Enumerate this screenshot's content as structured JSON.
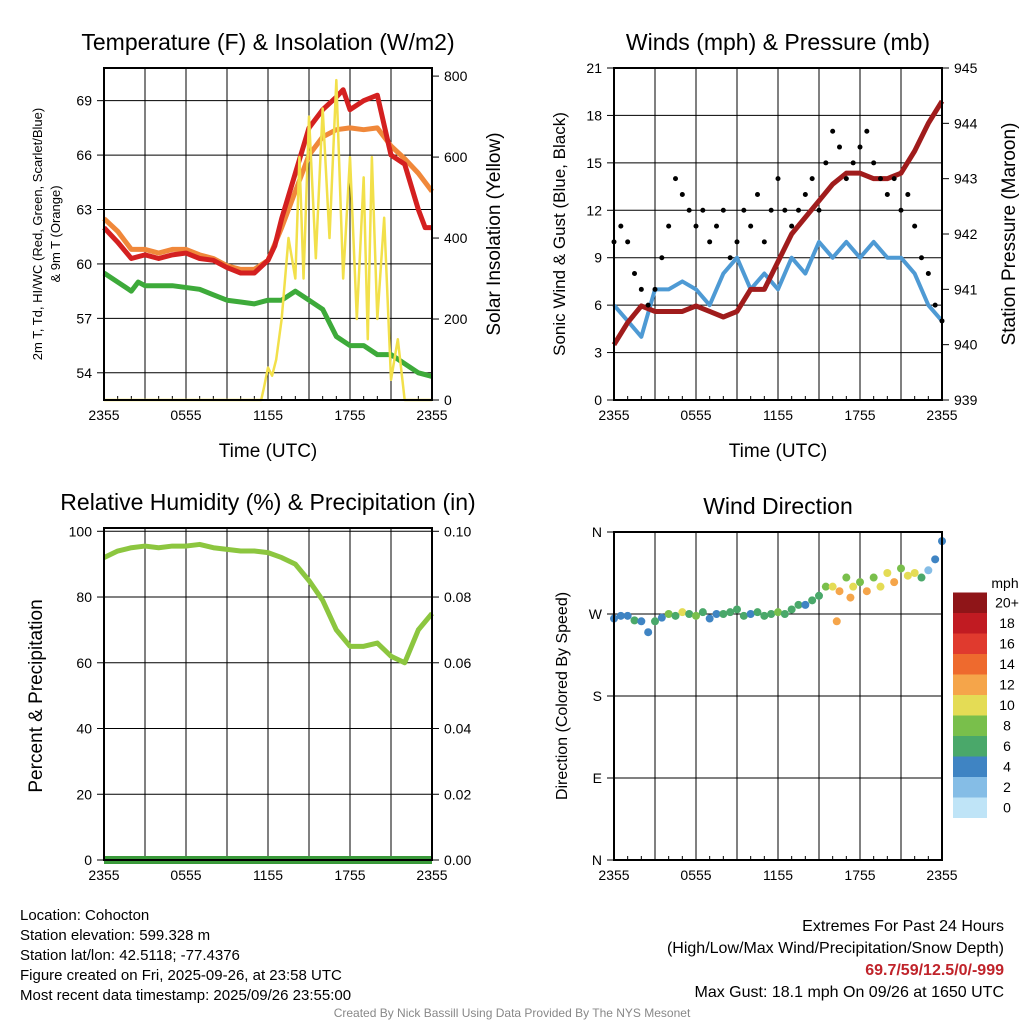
{
  "chart_data": [
    {
      "type": "line",
      "title": "Temperature (F) & Insolation (W/m2)",
      "xlabel": "Time (UTC)",
      "ylabel": "2m T, Td, HI/WC (Red, Green, Scarlet/Blue) & 9m T (Orange)",
      "ylabel2": "Solar Insolation (Yellow)",
      "xticks": [
        "2355",
        "0555",
        "1155",
        "1755",
        "2355"
      ],
      "yticks": [
        "54",
        "57",
        "60",
        "63",
        "66",
        "69"
      ],
      "yticks2": [
        "0",
        "200",
        "400",
        "600",
        "800"
      ],
      "ylim": [
        52.5,
        70.8
      ],
      "ylim2": [
        0,
        820
      ],
      "series": [
        {
          "name": "9m T",
          "color": "#f0883a",
          "axis": "left",
          "points": [
            [
              0,
              62.5
            ],
            [
              1,
              61.8
            ],
            [
              2,
              60.8
            ],
            [
              3,
              60.8
            ],
            [
              4,
              60.6
            ],
            [
              5,
              60.8
            ],
            [
              6,
              60.8
            ],
            [
              7,
              60.5
            ],
            [
              8,
              60.3
            ],
            [
              9,
              59.9
            ],
            [
              10,
              59.7
            ],
            [
              11,
              59.7
            ],
            [
              12,
              60.2
            ],
            [
              13,
              62
            ],
            [
              14,
              64
            ],
            [
              15,
              66
            ],
            [
              16,
              67
            ],
            [
              17,
              67.4
            ],
            [
              18,
              67.5
            ],
            [
              19,
              67.4
            ],
            [
              20,
              67.5
            ],
            [
              21,
              66.5
            ],
            [
              22,
              65.8
            ],
            [
              23,
              65
            ],
            [
              24,
              64
            ]
          ]
        },
        {
          "name": "2m T",
          "color": "#d42020",
          "axis": "left",
          "points": [
            [
              0,
              62
            ],
            [
              1,
              61.2
            ],
            [
              2,
              60.3
            ],
            [
              3,
              60.5
            ],
            [
              4,
              60.3
            ],
            [
              5,
              60.5
            ],
            [
              6,
              60.6
            ],
            [
              7,
              60.3
            ],
            [
              8,
              60.2
            ],
            [
              9,
              59.8
            ],
            [
              10,
              59.5
            ],
            [
              11,
              59.5
            ],
            [
              12,
              60.2
            ],
            [
              12.5,
              61
            ],
            [
              13,
              62.5
            ],
            [
              14,
              65
            ],
            [
              15,
              67.5
            ],
            [
              16,
              68.5
            ],
            [
              17,
              69.2
            ],
            [
              17.5,
              69.6
            ],
            [
              18,
              68.5
            ],
            [
              19,
              69
            ],
            [
              20,
              69.3
            ],
            [
              21,
              66
            ],
            [
              22,
              65.5
            ],
            [
              23,
              63
            ],
            [
              23.5,
              62
            ],
            [
              24,
              62
            ]
          ]
        },
        {
          "name": "2m Td",
          "color": "#3daa3a",
          "axis": "left",
          "points": [
            [
              0,
              59.5
            ],
            [
              1,
              59
            ],
            [
              2,
              58.5
            ],
            [
              2.5,
              59
            ],
            [
              3,
              58.8
            ],
            [
              5,
              58.8
            ],
            [
              7,
              58.6
            ],
            [
              8,
              58.3
            ],
            [
              9,
              58
            ],
            [
              10,
              57.9
            ],
            [
              11,
              57.8
            ],
            [
              12,
              58
            ],
            [
              13,
              58
            ],
            [
              14,
              58.5
            ],
            [
              15,
              58
            ],
            [
              16,
              57.5
            ],
            [
              17,
              56
            ],
            [
              18,
              55.5
            ],
            [
              19,
              55.5
            ],
            [
              20,
              55
            ],
            [
              21,
              55
            ],
            [
              22,
              54.5
            ],
            [
              23,
              54
            ],
            [
              24,
              53.8
            ]
          ]
        },
        {
          "name": "Solar Insolation",
          "color": "#f2e04a",
          "axis": "right",
          "points": [
            [
              0,
              0
            ],
            [
              11.5,
              0
            ],
            [
              11.7,
              30
            ],
            [
              12,
              80
            ],
            [
              12.3,
              60
            ],
            [
              12.6,
              100
            ],
            [
              13,
              200
            ],
            [
              13.5,
              400
            ],
            [
              14,
              300
            ],
            [
              14.3,
              600
            ],
            [
              14.6,
              300
            ],
            [
              15,
              700
            ],
            [
              15.5,
              350
            ],
            [
              16,
              720
            ],
            [
              16.5,
              400
            ],
            [
              17,
              790
            ],
            [
              17.5,
              300
            ],
            [
              18,
              600
            ],
            [
              18.5,
              200
            ],
            [
              19,
              550
            ],
            [
              19.3,
              150
            ],
            [
              19.6,
              600
            ],
            [
              20,
              200
            ],
            [
              20.5,
              450
            ],
            [
              21,
              50
            ],
            [
              21.5,
              150
            ],
            [
              22,
              0
            ],
            [
              24,
              0
            ]
          ]
        }
      ]
    },
    {
      "type": "line",
      "title": "Winds (mph) & Pressure (mb)",
      "xlabel": "Time (UTC)",
      "ylabel": "Sonic Wind & Gust (Blue, Black)",
      "ylabel2": "Station Pressure (Maroon)",
      "xticks": [
        "2355",
        "0555",
        "1155",
        "1755",
        "2355"
      ],
      "yticks": [
        "0",
        "3",
        "6",
        "9",
        "12",
        "15",
        "18",
        "21"
      ],
      "yticks2": [
        "939",
        "940",
        "941",
        "942",
        "943",
        "944",
        "945"
      ],
      "ylim": [
        0,
        21
      ],
      "ylim2": [
        939,
        945
      ],
      "wind": {
        "color": "#4e9ad4",
        "points": [
          [
            0,
            6
          ],
          [
            1,
            5
          ],
          [
            2,
            4
          ],
          [
            3,
            7
          ],
          [
            4,
            7
          ],
          [
            5,
            7.5
          ],
          [
            6,
            7
          ],
          [
            7,
            6
          ],
          [
            8,
            8
          ],
          [
            9,
            9
          ],
          [
            10,
            7
          ],
          [
            11,
            8
          ],
          [
            12,
            7
          ],
          [
            13,
            9
          ],
          [
            14,
            8
          ],
          [
            15,
            10
          ],
          [
            16,
            9
          ],
          [
            17,
            10
          ],
          [
            18,
            9
          ],
          [
            19,
            10
          ],
          [
            20,
            9
          ],
          [
            21,
            9
          ],
          [
            22,
            8
          ],
          [
            23,
            6
          ],
          [
            24,
            5
          ]
        ]
      },
      "gust": {
        "color": "#000000",
        "values": [
          10,
          11,
          10,
          8,
          7,
          6,
          7,
          9,
          11,
          14,
          13,
          12,
          11,
          12,
          10,
          11,
          12,
          9,
          10,
          12,
          11,
          13,
          10,
          12,
          14,
          12,
          11,
          12,
          13,
          14,
          12,
          15,
          17,
          16,
          14,
          15,
          16,
          17,
          15,
          14,
          13,
          14,
          12,
          13,
          11,
          9,
          8,
          6,
          5
        ]
      },
      "pressure": {
        "color": "#a01c1c",
        "points": [
          [
            0,
            940
          ],
          [
            1,
            940.4
          ],
          [
            2,
            940.7
          ],
          [
            3,
            940.6
          ],
          [
            5,
            940.6
          ],
          [
            6,
            940.7
          ],
          [
            7,
            940.6
          ],
          [
            8,
            940.5
          ],
          [
            9,
            940.6
          ],
          [
            10,
            941
          ],
          [
            11,
            941
          ],
          [
            12,
            941.5
          ],
          [
            13,
            942
          ],
          [
            14,
            942.3
          ],
          [
            15,
            942.6
          ],
          [
            16,
            942.9
          ],
          [
            17,
            943.1
          ],
          [
            18,
            943.1
          ],
          [
            19,
            943
          ],
          [
            20,
            943
          ],
          [
            21,
            943.1
          ],
          [
            22,
            943.5
          ],
          [
            23,
            944
          ],
          [
            24,
            944.4
          ]
        ]
      }
    },
    {
      "type": "line",
      "title": "Relative Humidity (%) & Precipitation (in)",
      "ylabel": "Percent & Precipitation",
      "xticks": [
        "2355",
        "0555",
        "1155",
        "1755",
        "2355"
      ],
      "yticks": [
        "0",
        "20",
        "40",
        "60",
        "80",
        "100"
      ],
      "yticks2": [
        "0.00",
        "0.02",
        "0.04",
        "0.06",
        "0.08",
        "0.10"
      ],
      "ylim": [
        0,
        101
      ],
      "ylim2": [
        0,
        0.101
      ],
      "rh": {
        "color": "#8cc63f",
        "points": [
          [
            0,
            92
          ],
          [
            1,
            94
          ],
          [
            2,
            95
          ],
          [
            3,
            95.5
          ],
          [
            4,
            95
          ],
          [
            5,
            95.5
          ],
          [
            6,
            95.5
          ],
          [
            7,
            96
          ],
          [
            8,
            95
          ],
          [
            9,
            94.5
          ],
          [
            10,
            94
          ],
          [
            11,
            94
          ],
          [
            12,
            93.5
          ],
          [
            13,
            92
          ],
          [
            14,
            90
          ],
          [
            15,
            85
          ],
          [
            16,
            79
          ],
          [
            17,
            70
          ],
          [
            18,
            65
          ],
          [
            19,
            65
          ],
          [
            20,
            66
          ],
          [
            21,
            62
          ],
          [
            22,
            60
          ],
          [
            23,
            70
          ],
          [
            24,
            75
          ]
        ]
      },
      "precip": {
        "color": "#3a9a3a",
        "points": [
          [
            0,
            0
          ],
          [
            24,
            0
          ]
        ]
      }
    },
    {
      "type": "scatter",
      "title": "Wind Direction",
      "ylabel": "Direction (Colored By Speed)",
      "xticks": [
        "2355",
        "0555",
        "1155",
        "1755",
        "2355"
      ],
      "yticks": [
        "N",
        "E",
        "S",
        "W",
        "N"
      ],
      "ylim": [
        0,
        360
      ],
      "legend_title": "mph",
      "legend_labels": [
        "0",
        "2",
        "4",
        "6",
        "8",
        "10",
        "12",
        "14",
        "16",
        "18",
        "20+"
      ],
      "legend_colors": [
        "#bfe4f7",
        "#85bde6",
        "#3f84c3",
        "#4aa86a",
        "#79bf4b",
        "#e4dc55",
        "#f5a54a",
        "#ee6a2e",
        "#e03a2e",
        "#c11b22",
        "#8f1518"
      ],
      "points": [
        [
          0,
          265,
          4
        ],
        [
          0.5,
          268,
          5
        ],
        [
          1,
          268,
          5
        ],
        [
          1.5,
          263,
          6
        ],
        [
          2,
          262,
          4
        ],
        [
          2.5,
          250,
          4
        ],
        [
          3,
          262,
          6
        ],
        [
          3.5,
          266,
          5
        ],
        [
          4,
          270,
          9
        ],
        [
          4.5,
          268,
          7
        ],
        [
          5,
          272,
          10
        ],
        [
          5.5,
          270,
          7
        ],
        [
          6,
          268,
          8
        ],
        [
          6.5,
          272,
          6
        ],
        [
          7,
          265,
          5
        ],
        [
          7.5,
          270,
          5
        ],
        [
          8,
          270,
          7
        ],
        [
          8.5,
          272,
          6
        ],
        [
          9,
          275,
          6
        ],
        [
          9.5,
          268,
          7
        ],
        [
          10,
          270,
          4
        ],
        [
          10.5,
          272,
          6
        ],
        [
          11,
          268,
          6
        ],
        [
          11.5,
          270,
          7
        ],
        [
          12,
          272,
          8
        ],
        [
          12.5,
          270,
          6
        ],
        [
          13,
          275,
          7
        ],
        [
          13.5,
          280,
          6
        ],
        [
          14,
          280,
          5
        ],
        [
          14.5,
          285,
          7
        ],
        [
          15,
          290,
          6
        ],
        [
          15.5,
          300,
          8
        ],
        [
          16,
          300,
          10
        ],
        [
          16.3,
          262,
          12
        ],
        [
          16.5,
          295,
          12
        ],
        [
          17,
          310,
          8
        ],
        [
          17.3,
          288,
          12
        ],
        [
          17.5,
          300,
          11
        ],
        [
          18,
          305,
          9
        ],
        [
          18.5,
          295,
          13
        ],
        [
          19,
          310,
          8
        ],
        [
          19.5,
          300,
          10
        ],
        [
          20,
          315,
          10
        ],
        [
          20.5,
          305,
          12
        ],
        [
          21,
          320,
          9
        ],
        [
          21.5,
          312,
          10
        ],
        [
          22,
          315,
          11
        ],
        [
          22.5,
          310,
          7
        ],
        [
          23,
          318,
          3
        ],
        [
          23.5,
          330,
          4
        ],
        [
          24,
          350,
          4
        ]
      ]
    }
  ],
  "footer": {
    "location": "Location: Cohocton",
    "elevation": "Station elevation: 599.328 m",
    "latlon": "Station lat/lon: 42.5118; -77.4376",
    "created": "Figure created on Fri, 2025-09-26, at 23:58 UTC",
    "recent": "Most recent data timestamp: 2025/09/26 23:55:00",
    "extremes_title": "Extremes For Past 24 Hours",
    "extremes_sub": "(High/Low/Max Wind/Precipitation/Snow Depth)",
    "extremes_values": "69.7/59/12.5/0/-999",
    "max_gust": "Max Gust: 18.1 mph On 09/26 at 1650 UTC",
    "credit": "Created By Nick Bassill Using Data Provided By The NYS Mesonet"
  }
}
